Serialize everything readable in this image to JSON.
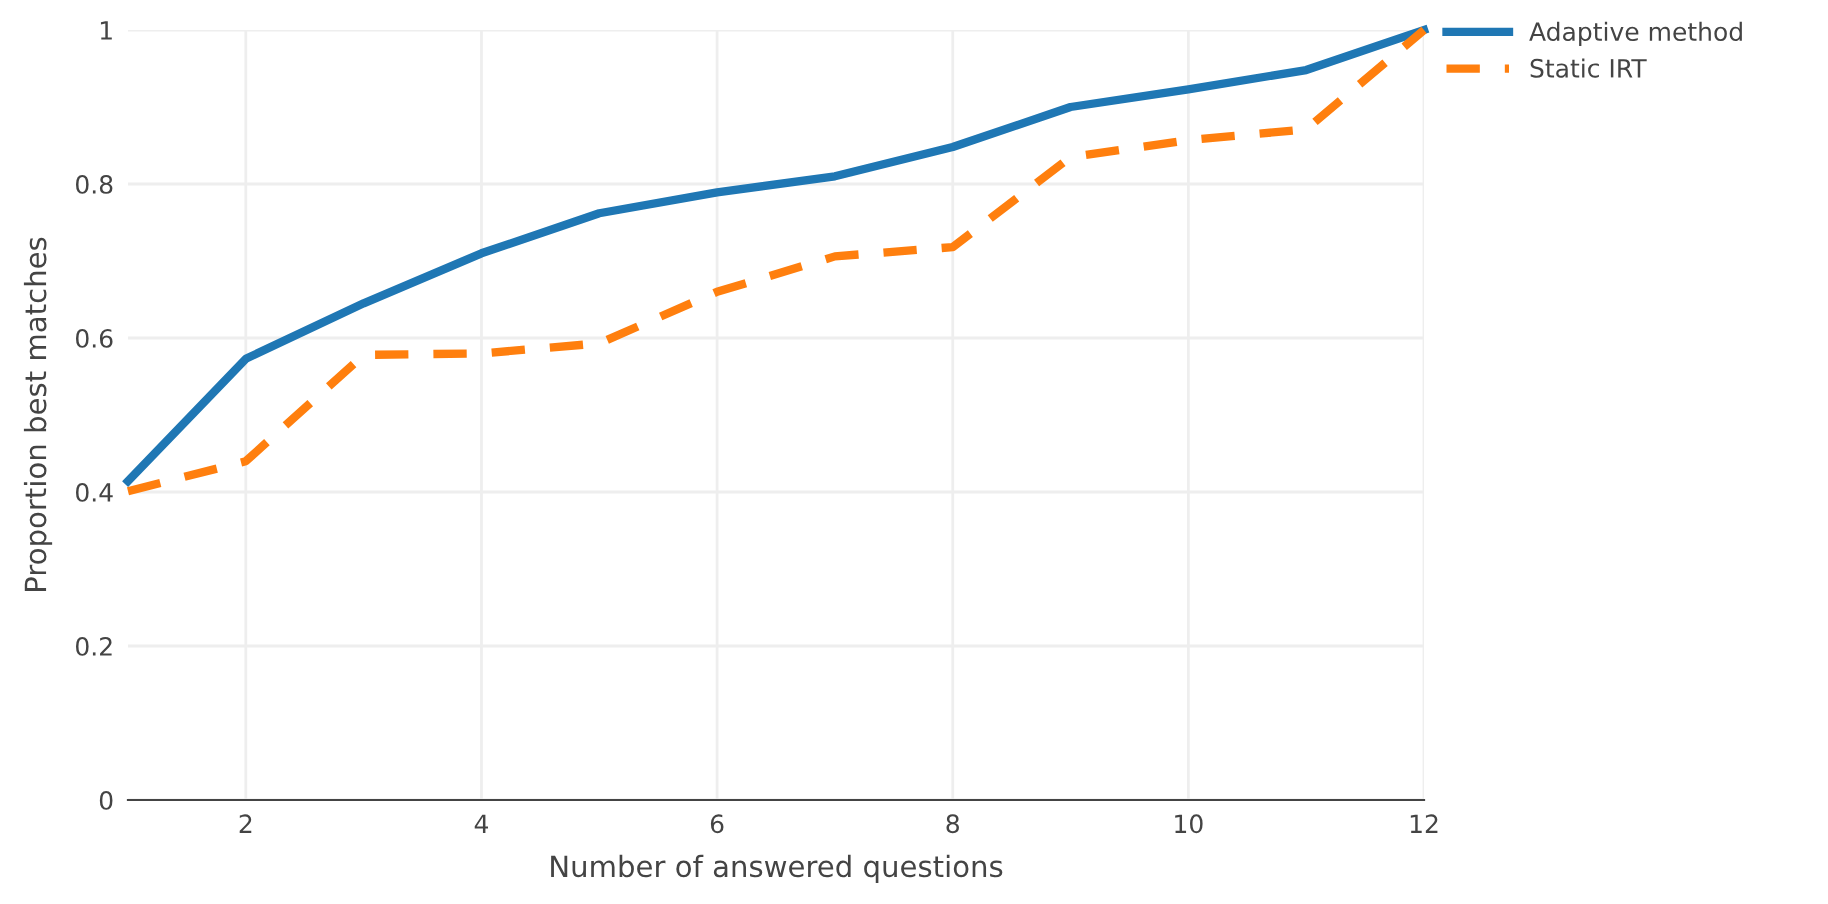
{
  "chart_data": {
    "type": "line",
    "xlabel": "Number of answered questions",
    "ylabel": "Proportion best matches",
    "x": [
      1,
      2,
      3,
      4,
      5,
      6,
      7,
      8,
      9,
      10,
      11,
      12
    ],
    "series": [
      {
        "name": "Adaptive method",
        "color": "#1f77b4",
        "line_style": "solid",
        "values": [
          0.414,
          0.573,
          0.645,
          0.71,
          0.762,
          0.789,
          0.81,
          0.848,
          0.9,
          0.923,
          0.948,
          1.0
        ]
      },
      {
        "name": "Static IRT",
        "color": "#ff7f0e",
        "line_style": "dashed",
        "values": [
          0.401,
          0.44,
          0.578,
          0.58,
          0.593,
          0.66,
          0.706,
          0.718,
          0.835,
          0.857,
          0.871,
          1.0
        ]
      }
    ],
    "xlim": [
      1,
      12
    ],
    "ylim": [
      0,
      1
    ],
    "xticks": [
      2,
      4,
      6,
      8,
      10,
      12
    ],
    "yticks": [
      0,
      0.2,
      0.4,
      0.6,
      0.8,
      1
    ],
    "grid": true,
    "legend": "top right",
    "marker": "none"
  }
}
